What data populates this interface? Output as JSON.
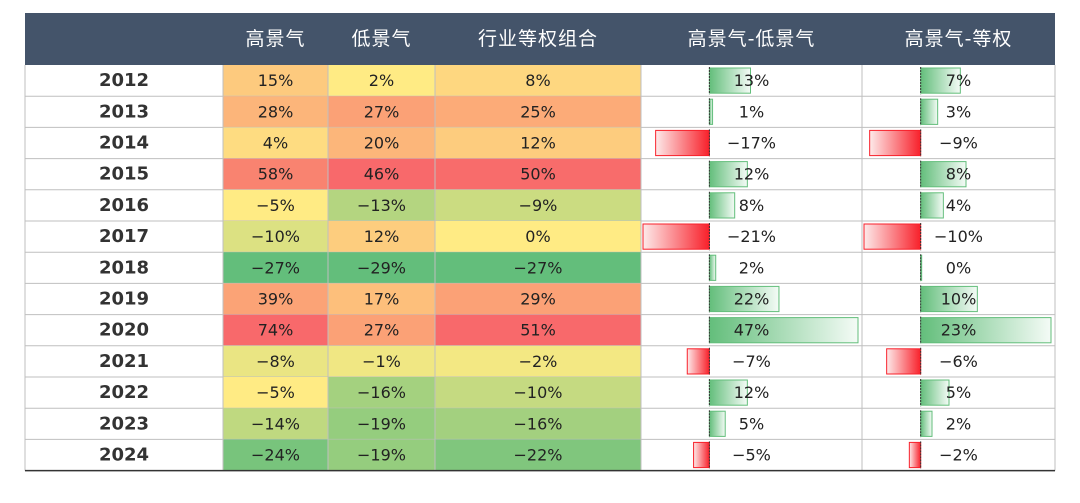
{
  "table": {
    "header": [
      "高景气",
      "低景气",
      "行业等权组合",
      "高景气-低景气",
      "高景气-等权"
    ],
    "rows": [
      [
        "2012",
        "15%",
        "2%",
        "8%",
        "13%",
        "7%"
      ],
      [
        "2013",
        "28%",
        "27%",
        "25%",
        "1%",
        "3%"
      ],
      [
        "2014",
        "4%",
        "20%",
        "12%",
        "−17%",
        "−9%"
      ],
      [
        "2015",
        "58%",
        "46%",
        "50%",
        "12%",
        "8%"
      ],
      [
        "2016",
        "−5%",
        "−13%",
        "−9%",
        "8%",
        "4%"
      ],
      [
        "2017",
        "−10%",
        "12%",
        "0%",
        "−21%",
        "−10%"
      ],
      [
        "2018",
        "−27%",
        "−29%",
        "−27%",
        "2%",
        "0%"
      ],
      [
        "2019",
        "39%",
        "17%",
        "29%",
        "22%",
        "10%"
      ],
      [
        "2020",
        "74%",
        "27%",
        "51%",
        "47%",
        "23%"
      ],
      [
        "2021",
        "−8%",
        "−1%",
        "−2%",
        "−7%",
        "−6%"
      ],
      [
        "2022",
        "−5%",
        "−16%",
        "−10%",
        "12%",
        "5%"
      ],
      [
        "2023",
        "−14%",
        "−19%",
        "−16%",
        "5%",
        "2%"
      ],
      [
        "2024",
        "−24%",
        "−19%",
        "−22%",
        "−5%",
        "−2%"
      ]
    ]
  }
}
